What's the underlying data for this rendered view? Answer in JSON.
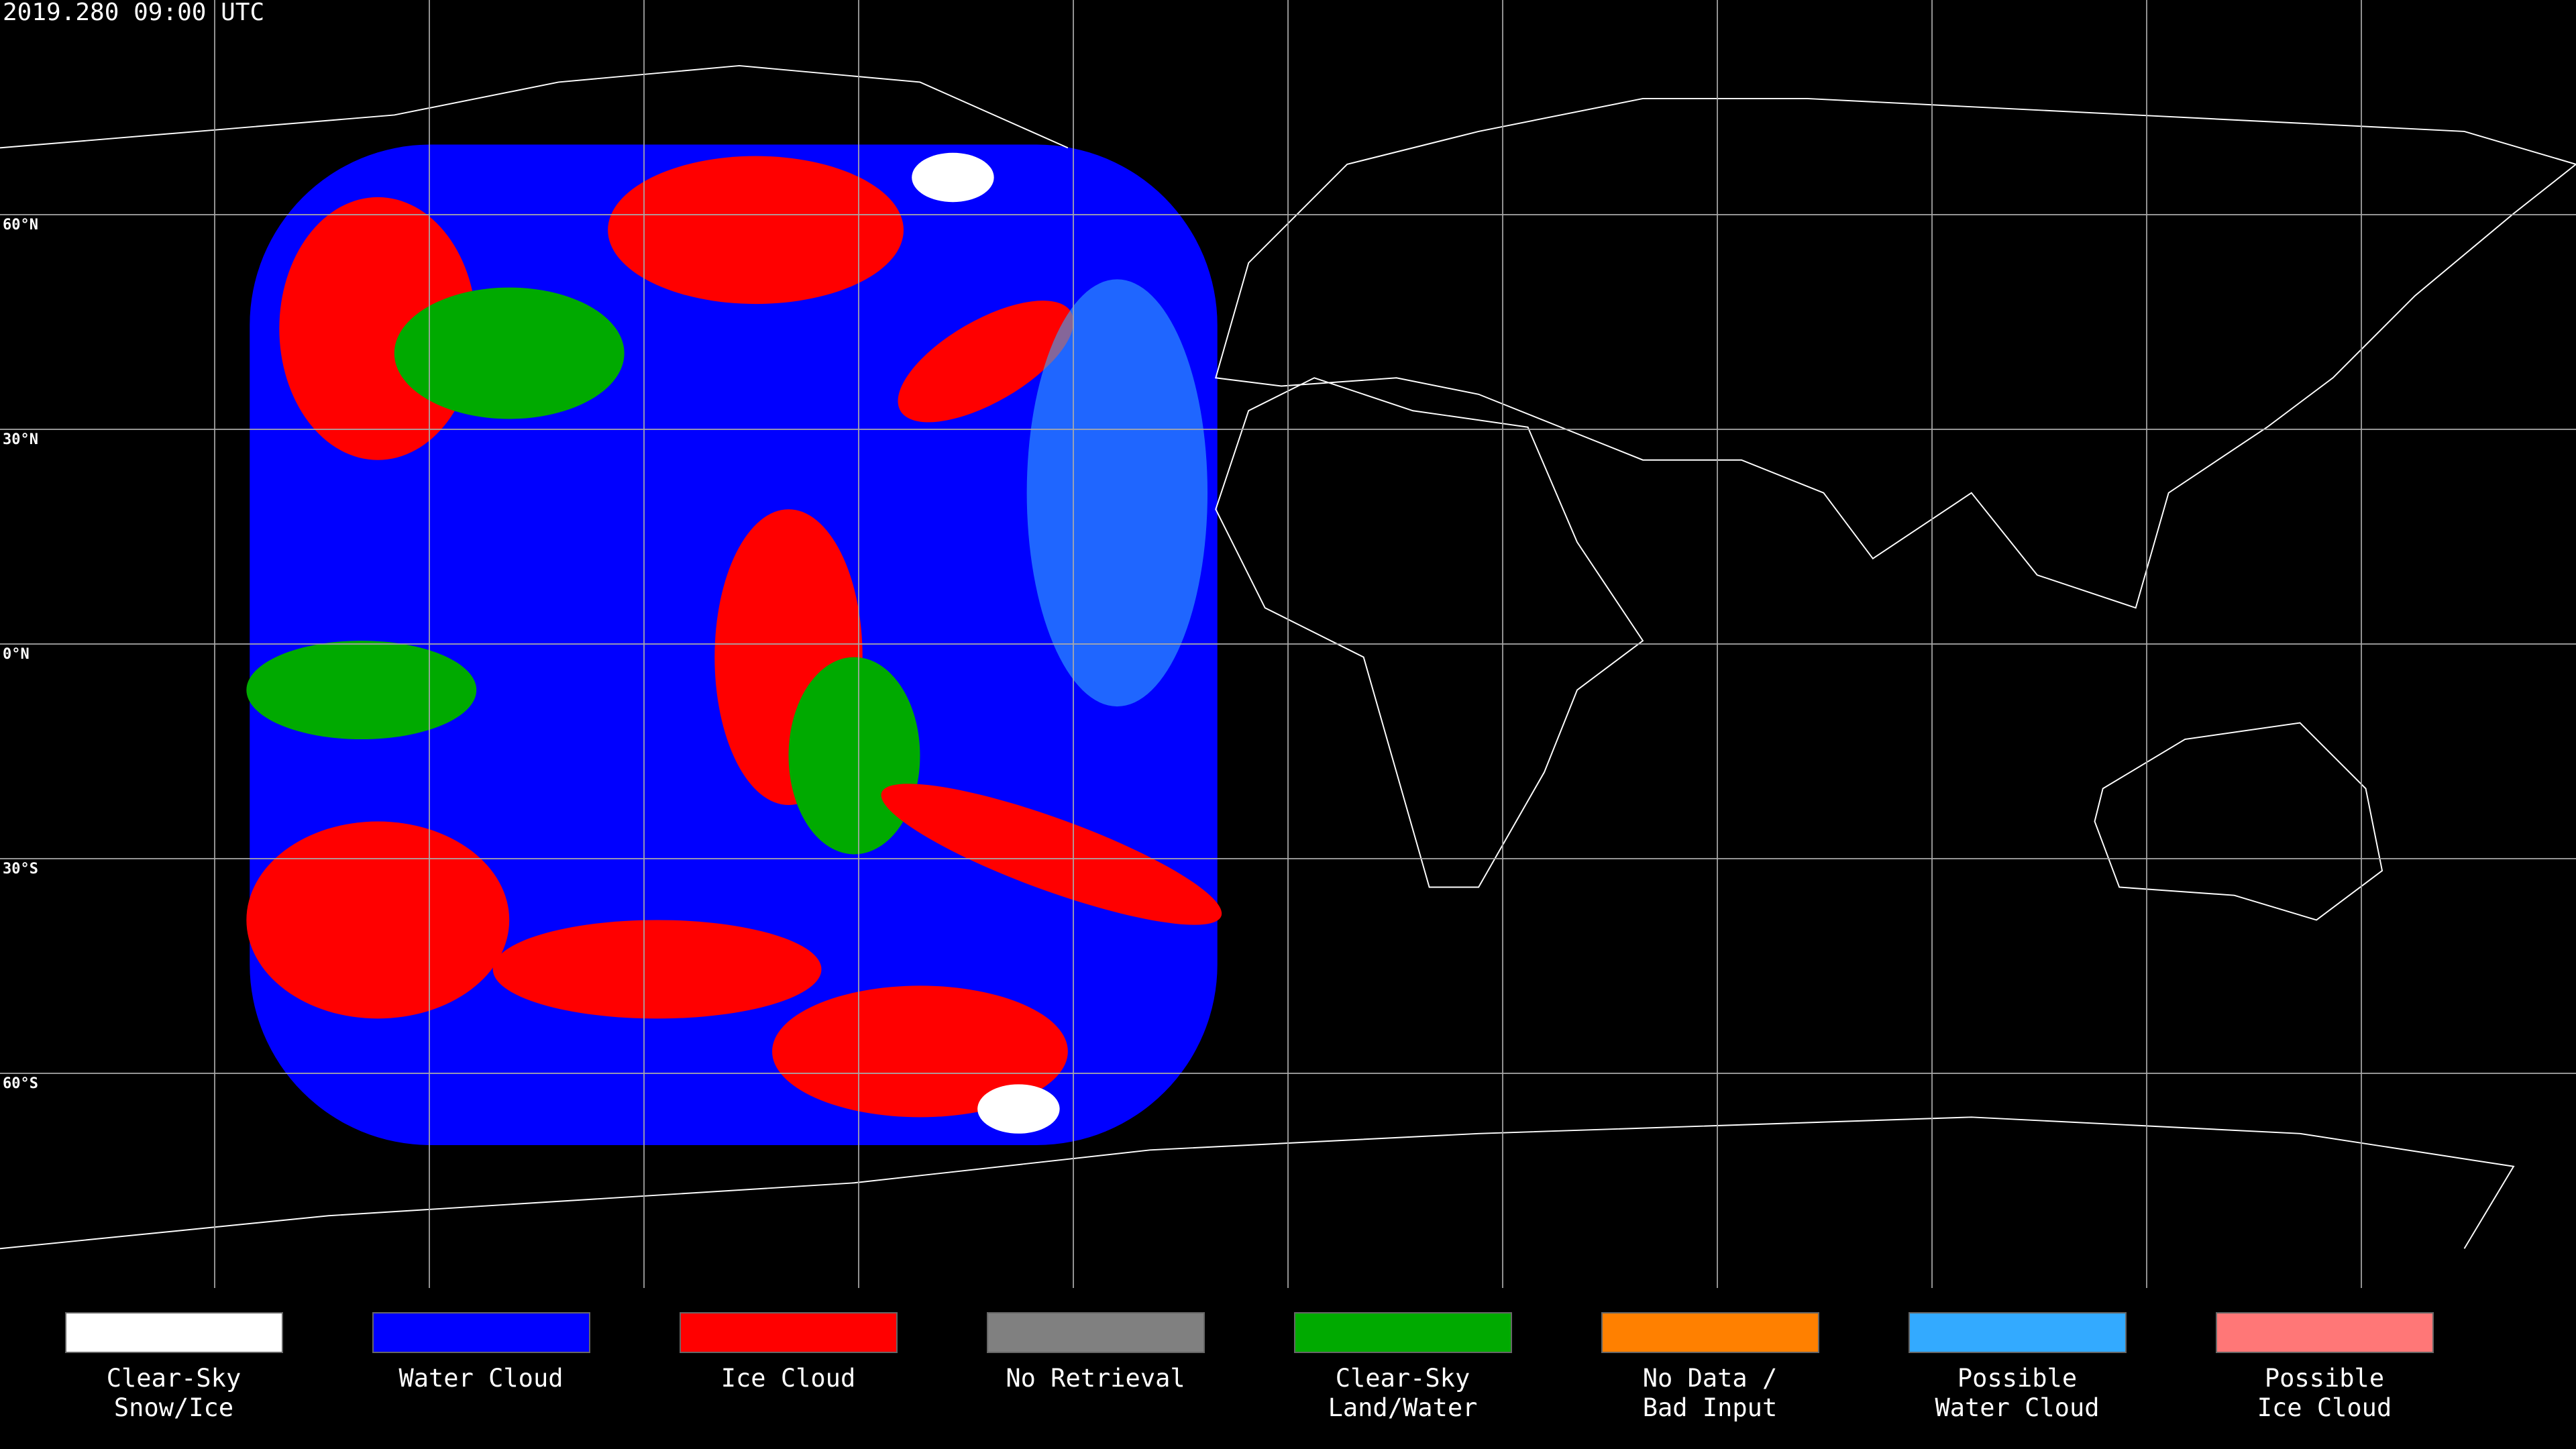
{
  "header": {
    "timestamp": "2019.280 09:00 UTC"
  },
  "map": {
    "latitude_labels": [
      "60°N",
      "30°N",
      "0°N",
      "30°S",
      "60°S"
    ]
  },
  "legend": {
    "items": [
      {
        "lines": [
          "Clear-Sky",
          "Snow/Ice"
        ],
        "color": "#ffffff"
      },
      {
        "lines": [
          "Water Cloud"
        ],
        "color": "#0000ff"
      },
      {
        "lines": [
          "Ice Cloud"
        ],
        "color": "#ff0000"
      },
      {
        "lines": [
          "No Retrieval"
        ],
        "color": "#808080"
      },
      {
        "lines": [
          "Clear-Sky",
          "Land/Water"
        ],
        "color": "#00aa00"
      },
      {
        "lines": [
          "No Data /",
          "Bad Input"
        ],
        "color": "#ff8000"
      },
      {
        "lines": [
          "Possible",
          "Water Cloud"
        ],
        "color": "#33aaff"
      },
      {
        "lines": [
          "Possible",
          "Ice Cloud"
        ],
        "color": "#ff7777"
      }
    ]
  }
}
